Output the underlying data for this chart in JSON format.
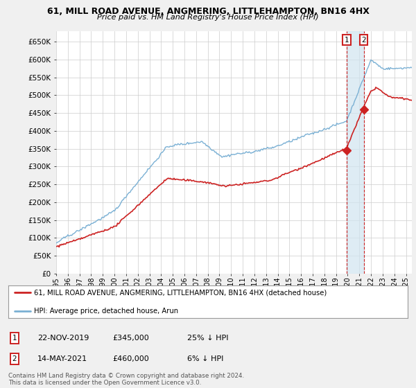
{
  "title": "61, MILL ROAD AVENUE, ANGMERING, LITTLEHAMPTON, BN16 4HX",
  "subtitle": "Price paid vs. HM Land Registry's House Price Index (HPI)",
  "ylabel_ticks": [
    "£0",
    "£50K",
    "£100K",
    "£150K",
    "£200K",
    "£250K",
    "£300K",
    "£350K",
    "£400K",
    "£450K",
    "£500K",
    "£550K",
    "£600K",
    "£650K"
  ],
  "ytick_values": [
    0,
    50000,
    100000,
    150000,
    200000,
    250000,
    300000,
    350000,
    400000,
    450000,
    500000,
    550000,
    600000,
    650000
  ],
  "ylim": [
    0,
    680000
  ],
  "xlim_start": 1995.0,
  "xlim_end": 2025.5,
  "hpi_color": "#7ab0d4",
  "price_color": "#cc2222",
  "annotation_color": "#cc2222",
  "shade_color": "#d0e4f0",
  "bg_color": "#f0f0f0",
  "plot_bg_color": "#ffffff",
  "grid_color": "#cccccc",
  "legend_label_red": "61, MILL ROAD AVENUE, ANGMERING, LITTLEHAMPTON, BN16 4HX (detached house)",
  "legend_label_blue": "HPI: Average price, detached house, Arun",
  "annotation1_label": "1",
  "annotation1_date": "22-NOV-2019",
  "annotation1_price": "£345,000",
  "annotation1_hpi": "25% ↓ HPI",
  "annotation2_label": "2",
  "annotation2_date": "14-MAY-2021",
  "annotation2_price": "£460,000",
  "annotation2_hpi": "6% ↓ HPI",
  "copyright": "Contains HM Land Registry data © Crown copyright and database right 2024.\nThis data is licensed under the Open Government Licence v3.0.",
  "sale1_x": 2019.9,
  "sale1_y": 345000,
  "sale2_x": 2021.37,
  "sale2_y": 460000
}
